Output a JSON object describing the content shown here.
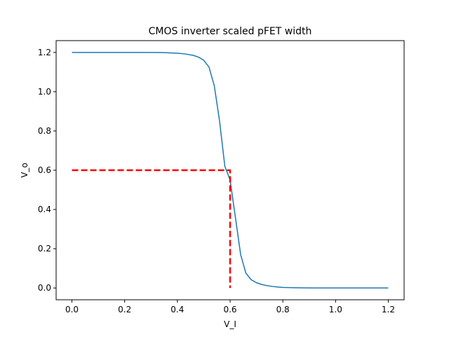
{
  "chart_data": {
    "type": "line",
    "title": "CMOS inverter scaled pFET width",
    "xlabel": "V_I",
    "ylabel": "V_o",
    "xlim": [
      -0.06,
      1.26
    ],
    "ylim": [
      -0.06,
      1.26
    ],
    "xticks": [
      0.0,
      0.2,
      0.4,
      0.6,
      0.8,
      1.0,
      1.2
    ],
    "yticks": [
      0.0,
      0.2,
      0.4,
      0.6,
      0.8,
      1.0,
      1.2
    ],
    "xtick_labels": [
      "0.0",
      "0.2",
      "0.4",
      "0.6",
      "0.8",
      "1.0",
      "1.2"
    ],
    "ytick_labels": [
      "0.0",
      "0.2",
      "0.4",
      "0.6",
      "0.8",
      "1.0",
      "1.2"
    ],
    "grid": false,
    "series": [
      {
        "color": "#1f77b4",
        "style": "solid",
        "x": [
          0.0,
          0.1,
          0.2,
          0.3,
          0.35,
          0.4,
          0.43,
          0.46,
          0.48,
          0.5,
          0.52,
          0.54,
          0.56,
          0.58,
          0.6,
          0.62,
          0.64,
          0.66,
          0.68,
          0.7,
          0.72,
          0.74,
          0.76,
          0.78,
          0.8,
          0.84,
          0.88,
          0.92,
          1.0,
          1.1,
          1.2
        ],
        "y": [
          1.2,
          1.2,
          1.2,
          1.2,
          1.199,
          1.196,
          1.192,
          1.185,
          1.176,
          1.16,
          1.125,
          1.03,
          0.85,
          0.62,
          0.55,
          0.36,
          0.17,
          0.075,
          0.042,
          0.027,
          0.018,
          0.012,
          0.008,
          0.005,
          0.003,
          0.0015,
          0.0008,
          0.0004,
          0.0001,
          0.0,
          0.0
        ]
      },
      {
        "color": "#ff0000",
        "style": "dashed",
        "x": [
          0.0,
          0.6,
          0.6
        ],
        "y": [
          0.6,
          0.6,
          0.0
        ]
      }
    ]
  }
}
